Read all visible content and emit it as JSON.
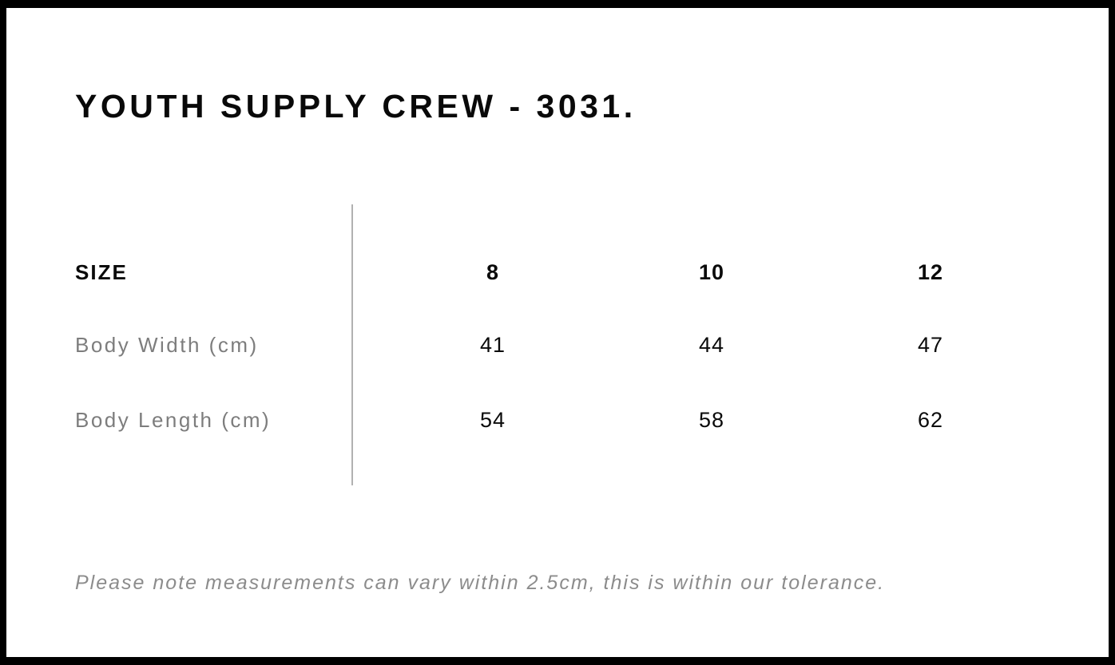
{
  "page": {
    "title": "YOUTH SUPPLY CREW - 3031.",
    "footnote": "Please note measurements can vary within 2.5cm, this is within our tolerance."
  },
  "size_chart": {
    "header_label": "SIZE",
    "sizes": [
      "8",
      "10",
      "12"
    ],
    "rows": [
      {
        "label": "Body Width (cm)",
        "values": [
          "41",
          "44",
          "47"
        ]
      },
      {
        "label": "Body Length (cm)",
        "values": [
          "54",
          "58",
          "62"
        ]
      }
    ]
  },
  "chart_data": {
    "type": "table",
    "title": "YOUTH SUPPLY CREW - 3031.",
    "columns": [
      "SIZE",
      "8",
      "10",
      "12"
    ],
    "rows": [
      [
        "Body Width (cm)",
        41,
        44,
        47
      ],
      [
        "Body Length (cm)",
        54,
        58,
        62
      ]
    ],
    "note": "Please note measurements can vary within 2.5cm, this is within our tolerance."
  },
  "colors": {
    "background": "#ffffff",
    "border": "#000000",
    "heading_text": "#0a0a0a",
    "label_text": "#7d7d7d",
    "footnote_text": "#8c8c8c",
    "divider": "#b1b1b1"
  }
}
